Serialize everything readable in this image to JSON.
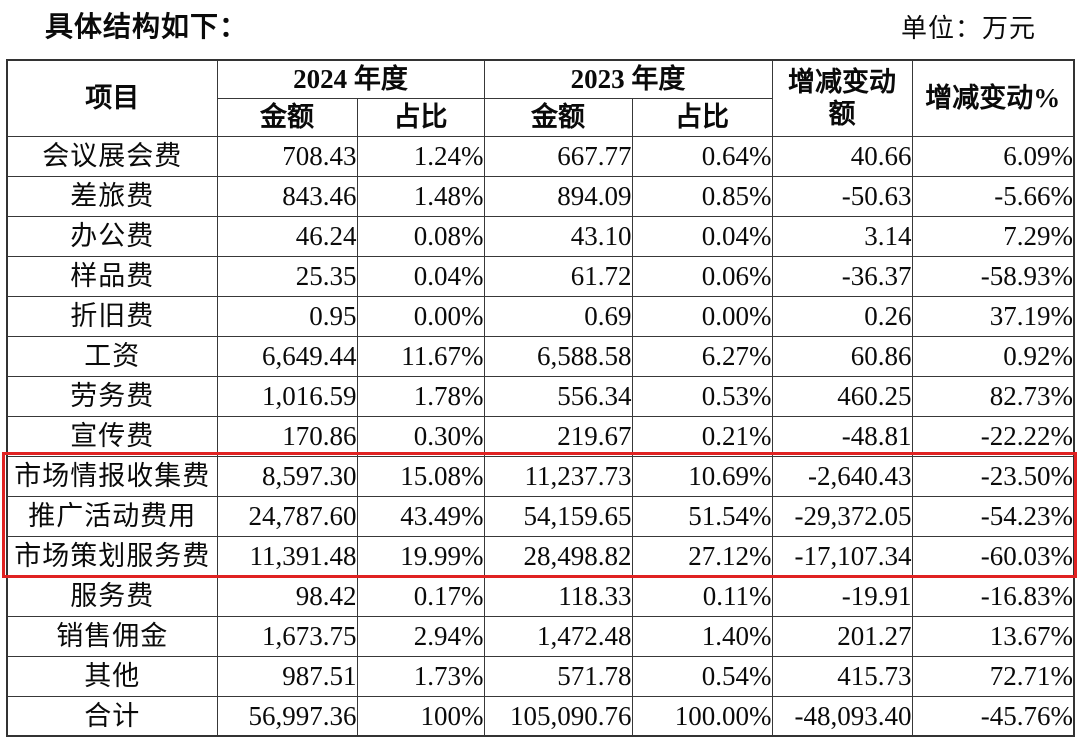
{
  "page": {
    "title": "具体结构如下：",
    "unit_label": "单位：万元"
  },
  "colors": {
    "highlight_border": "#e02222",
    "table_border": "#383838",
    "text": "#0a0a0a",
    "background": "#ffffff"
  },
  "table": {
    "header": {
      "item": "项目",
      "group_2024": "2024 年度",
      "group_2023": "2023 年度",
      "amount": "金额",
      "share": "占比",
      "change_amount": "增减变动额",
      "change_percent": "增减变动%"
    },
    "highlight": {
      "start": 8,
      "end": 10
    },
    "rows": [
      {
        "label": "会议展会费",
        "amount_2024": "708.43",
        "share_2024": "1.24%",
        "amount_2023": "667.77",
        "share_2023": "0.64%",
        "change_amount": "40.66",
        "change_percent": "6.09%"
      },
      {
        "label": "差旅费",
        "amount_2024": "843.46",
        "share_2024": "1.48%",
        "amount_2023": "894.09",
        "share_2023": "0.85%",
        "change_amount": "-50.63",
        "change_percent": "-5.66%"
      },
      {
        "label": "办公费",
        "amount_2024": "46.24",
        "share_2024": "0.08%",
        "amount_2023": "43.10",
        "share_2023": "0.04%",
        "change_amount": "3.14",
        "change_percent": "7.29%"
      },
      {
        "label": "样品费",
        "amount_2024": "25.35",
        "share_2024": "0.04%",
        "amount_2023": "61.72",
        "share_2023": "0.06%",
        "change_amount": "-36.37",
        "change_percent": "-58.93%"
      },
      {
        "label": "折旧费",
        "amount_2024": "0.95",
        "share_2024": "0.00%",
        "amount_2023": "0.69",
        "share_2023": "0.00%",
        "change_amount": "0.26",
        "change_percent": "37.19%"
      },
      {
        "label": "工资",
        "amount_2024": "6,649.44",
        "share_2024": "11.67%",
        "amount_2023": "6,588.58",
        "share_2023": "6.27%",
        "change_amount": "60.86",
        "change_percent": "0.92%"
      },
      {
        "label": "劳务费",
        "amount_2024": "1,016.59",
        "share_2024": "1.78%",
        "amount_2023": "556.34",
        "share_2023": "0.53%",
        "change_amount": "460.25",
        "change_percent": "82.73%"
      },
      {
        "label": "宣传费",
        "amount_2024": "170.86",
        "share_2024": "0.30%",
        "amount_2023": "219.67",
        "share_2023": "0.21%",
        "change_amount": "-48.81",
        "change_percent": "-22.22%"
      },
      {
        "label": "市场情报收集费",
        "amount_2024": "8,597.30",
        "share_2024": "15.08%",
        "amount_2023": "11,237.73",
        "share_2023": "10.69%",
        "change_amount": "-2,640.43",
        "change_percent": "-23.50%"
      },
      {
        "label": "推广活动费用",
        "amount_2024": "24,787.60",
        "share_2024": "43.49%",
        "amount_2023": "54,159.65",
        "share_2023": "51.54%",
        "change_amount": "-29,372.05",
        "change_percent": "-54.23%"
      },
      {
        "label": "市场策划服务费",
        "amount_2024": "11,391.48",
        "share_2024": "19.99%",
        "amount_2023": "28,498.82",
        "share_2023": "27.12%",
        "change_amount": "-17,107.34",
        "change_percent": "-60.03%"
      },
      {
        "label": "服务费",
        "amount_2024": "98.42",
        "share_2024": "0.17%",
        "amount_2023": "118.33",
        "share_2023": "0.11%",
        "change_amount": "-19.91",
        "change_percent": "-16.83%"
      },
      {
        "label": "销售佣金",
        "amount_2024": "1,673.75",
        "share_2024": "2.94%",
        "amount_2023": "1,472.48",
        "share_2023": "1.40%",
        "change_amount": "201.27",
        "change_percent": "13.67%"
      },
      {
        "label": "其他",
        "amount_2024": "987.51",
        "share_2024": "1.73%",
        "amount_2023": "571.78",
        "share_2023": "0.54%",
        "change_amount": "415.73",
        "change_percent": "72.71%"
      },
      {
        "label": "合计",
        "amount_2024": "56,997.36",
        "share_2024": "100%",
        "amount_2023": "105,090.76",
        "share_2023": "100.00%",
        "change_amount": "-48,093.40",
        "change_percent": "-45.76%"
      }
    ]
  }
}
